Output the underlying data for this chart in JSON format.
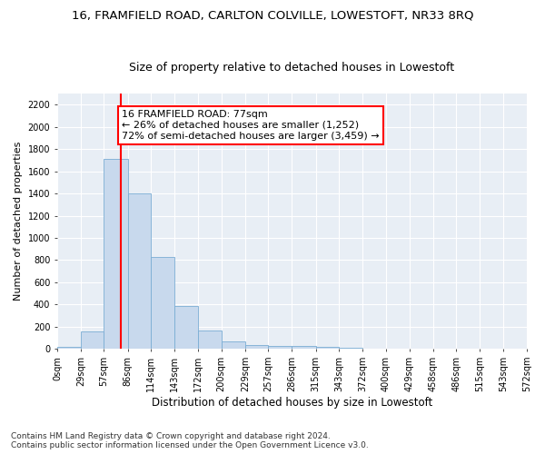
{
  "title": "16, FRAMFIELD ROAD, CARLTON COLVILLE, LOWESTOFT, NR33 8RQ",
  "subtitle": "Size of property relative to detached houses in Lowestoft",
  "xlabel": "Distribution of detached houses by size in Lowestoft",
  "ylabel": "Number of detached properties",
  "bar_color": "#c8d9ed",
  "bar_edge_color": "#7aadd4",
  "background_color": "#e8eef5",
  "grid_color": "#ffffff",
  "vline_x": 77,
  "vline_color": "red",
  "annotation_text": "16 FRAMFIELD ROAD: 77sqm\n← 26% of detached houses are smaller (1,252)\n72% of semi-detached houses are larger (3,459) →",
  "annotation_box_color": "white",
  "annotation_box_edge": "red",
  "bins": [
    0,
    29,
    57,
    86,
    114,
    143,
    172,
    200,
    229,
    257,
    286,
    315,
    343,
    372,
    400,
    429,
    458,
    486,
    515,
    543,
    572
  ],
  "bin_labels": [
    "0sqm",
    "29sqm",
    "57sqm",
    "86sqm",
    "114sqm",
    "143sqm",
    "172sqm",
    "200sqm",
    "229sqm",
    "257sqm",
    "286sqm",
    "315sqm",
    "343sqm",
    "372sqm",
    "400sqm",
    "429sqm",
    "458sqm",
    "486sqm",
    "515sqm",
    "543sqm",
    "572sqm"
  ],
  "bar_heights": [
    20,
    155,
    1710,
    1400,
    830,
    385,
    165,
    65,
    38,
    28,
    28,
    20,
    10,
    0,
    0,
    0,
    0,
    0,
    0,
    0
  ],
  "ylim": [
    0,
    2300
  ],
  "yticks": [
    0,
    200,
    400,
    600,
    800,
    1000,
    1200,
    1400,
    1600,
    1800,
    2000,
    2200
  ],
  "footnote": "Contains HM Land Registry data © Crown copyright and database right 2024.\nContains public sector information licensed under the Open Government Licence v3.0.",
  "title_fontsize": 9.5,
  "subtitle_fontsize": 9,
  "xlabel_fontsize": 8.5,
  "ylabel_fontsize": 8,
  "tick_fontsize": 7,
  "annot_fontsize": 8,
  "footnote_fontsize": 6.5
}
